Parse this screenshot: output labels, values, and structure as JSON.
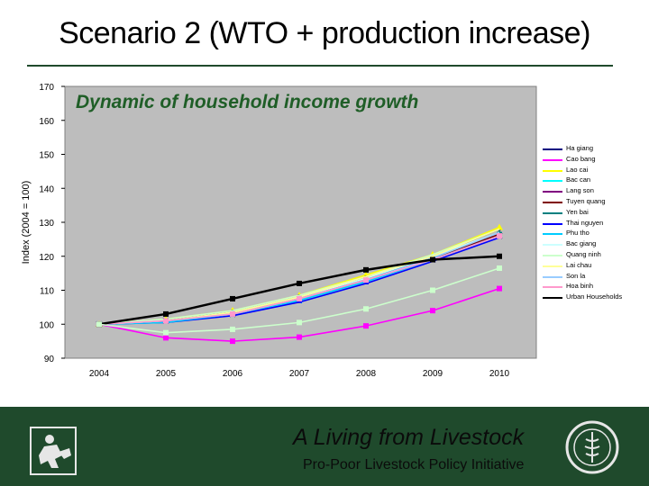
{
  "slide": {
    "title": "Scenario 2 (WTO + production increase)",
    "footer_line1": "A Living from Livestock",
    "footer_line2": "Pro-Poor Livestock Policy Initiative"
  },
  "icons": {
    "left_logo": "livestock-figure-icon",
    "right_logo": "fao-emblem-icon"
  },
  "colors": {
    "footer_bg": "#1f4a2c",
    "plot_bg": "#bdbdbd",
    "chart_title": "#1f5e27"
  },
  "chart_data": {
    "type": "line",
    "title": "Dynamic of household income growth",
    "ylabel": "Index (2004 = 100)",
    "xlabel": "",
    "x": [
      "2004",
      "2005",
      "2006",
      "2007",
      "2008",
      "2009",
      "2010"
    ],
    "ylim": [
      90,
      170
    ],
    "yticks": [
      90,
      100,
      110,
      120,
      130,
      140,
      150,
      160,
      170
    ],
    "grid": false,
    "legend_position": "right",
    "series": [
      {
        "name": "Ha giang",
        "color": "#000080",
        "marker": "diamond",
        "values": [
          100,
          101,
          103.5,
          108,
          114,
          120,
          128
        ]
      },
      {
        "name": "Cao bang",
        "color": "#ff00ff",
        "marker": "square",
        "values": [
          100,
          96,
          95,
          96.2,
          99.5,
          104,
          110.5
        ]
      },
      {
        "name": "Lao cai",
        "color": "#ffff00",
        "marker": "triangle",
        "values": [
          100,
          101.5,
          104,
          108.5,
          114.5,
          120.5,
          128.5
        ]
      },
      {
        "name": "Bac can",
        "color": "#00ffff",
        "marker": "x",
        "values": [
          100,
          101,
          103,
          107,
          113,
          119,
          126
        ]
      },
      {
        "name": "Lang son",
        "color": "#800080",
        "marker": "x",
        "values": [
          100,
          101,
          103,
          107.5,
          113,
          119,
          126
        ]
      },
      {
        "name": "Tuyen quang",
        "color": "#800000",
        "marker": "circle",
        "values": [
          100,
          101,
          103.5,
          108,
          113.5,
          119.5,
          126.5
        ]
      },
      {
        "name": "Yen bai",
        "color": "#008080",
        "marker": "plus",
        "values": [
          100,
          101,
          103.5,
          108,
          113.5,
          119.5,
          127
        ]
      },
      {
        "name": "Thai nguyen",
        "color": "#0000ff",
        "marker": "dash",
        "values": [
          100,
          100.5,
          102.5,
          106.5,
          112,
          118.5,
          125.5
        ]
      },
      {
        "name": "Phu tho",
        "color": "#00ccff",
        "marker": "dash",
        "values": [
          100,
          100.5,
          103,
          107,
          112.5,
          119,
          126
        ]
      },
      {
        "name": "Bac giang",
        "color": "#ccffff",
        "marker": "none",
        "values": [
          100,
          101,
          103.5,
          108,
          113.5,
          120,
          127
        ]
      },
      {
        "name": "Quang ninh",
        "color": "#ccffcc",
        "marker": "none",
        "values": [
          100,
          101.5,
          104,
          108.5,
          114,
          120.5,
          128
        ]
      },
      {
        "name": "Lai chau",
        "color": "#ffff99",
        "marker": "none",
        "values": [
          100,
          101,
          103.5,
          108,
          114,
          120,
          128
        ]
      },
      {
        "name": "Son la",
        "color": "#99ccff",
        "marker": "none",
        "values": [
          100,
          101,
          103,
          107.5,
          113,
          119.5,
          127
        ]
      },
      {
        "name": "Hoa binh",
        "color": "#ff99cc",
        "marker": "square",
        "values": [
          100,
          101,
          103,
          107.5,
          113,
          119,
          126
        ]
      },
      {
        "name": "Urban Households",
        "color": "#000000",
        "marker": "square",
        "values": [
          100,
          103,
          107.5,
          112,
          116,
          119,
          120
        ]
      },
      {
        "name": "",
        "color": "#ccffcc",
        "marker": "square",
        "values": [
          100,
          97.5,
          98.5,
          100.5,
          104.5,
          110,
          116.5
        ]
      }
    ]
  }
}
